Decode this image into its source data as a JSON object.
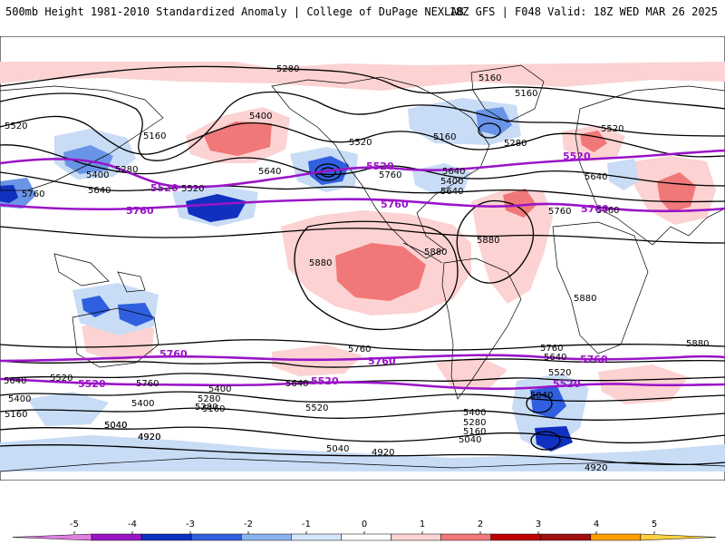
{
  "header": {
    "title": "500mb Height 1981-2010 Standardized Anomaly | College of DuPage NEXLAB",
    "run_info": "18Z GFS | F048 Valid: 18Z WED MAR 26 2025"
  },
  "map": {
    "contour_labels_black": [
      "5280",
      "5160",
      "5160",
      "5520",
      "5400",
      "5160",
      "5280",
      "5400",
      "5640",
      "5520",
      "5760",
      "5160",
      "5280",
      "5520",
      "5640",
      "5760",
      "5400",
      "5640",
      "5520",
      "5640",
      "5760",
      "5880",
      "5880",
      "5880",
      "5880",
      "5880",
      "5760",
      "5640",
      "5520",
      "5400",
      "5280",
      "5160",
      "5040",
      "5760",
      "5760",
      "5640",
      "5520",
      "5400",
      "5280",
      "5160",
      "5040",
      "4920",
      "5640",
      "5520",
      "5400",
      "5040",
      "4920",
      "5040",
      "4920",
      "5760",
      "5640",
      "5400",
      "5280",
      "5160",
      "5040",
      "4920"
    ],
    "contour_labels_purple": [
      "5520",
      "5520",
      "5520",
      "5760",
      "5760",
      "5760",
      "5760",
      "5760",
      "5760",
      "5520",
      "5520",
      "5520"
    ]
  },
  "colorbar": {
    "ticks": [
      "-5",
      "-4",
      "-3",
      "-2",
      "-1",
      "0",
      "1",
      "2",
      "3",
      "4",
      "5"
    ],
    "colors": [
      "#e080e0",
      "#9a14c8",
      "#1030c0",
      "#3060e0",
      "#8ab4f0",
      "#d4e6fa",
      "#ffffff",
      "#fcd2d2",
      "#f07878",
      "#c00000",
      "#a01010",
      "#ffa000",
      "#ffd040"
    ]
  },
  "colors": {
    "purple_contour": "#9a14c8",
    "black_contour": "#000000",
    "pos_light": "#fcd2d2",
    "pos_mid": "#f07878",
    "neg_light": "#c8dcf6",
    "neg_mid": "#6a94e8",
    "neg_dark": "#1030c0"
  }
}
